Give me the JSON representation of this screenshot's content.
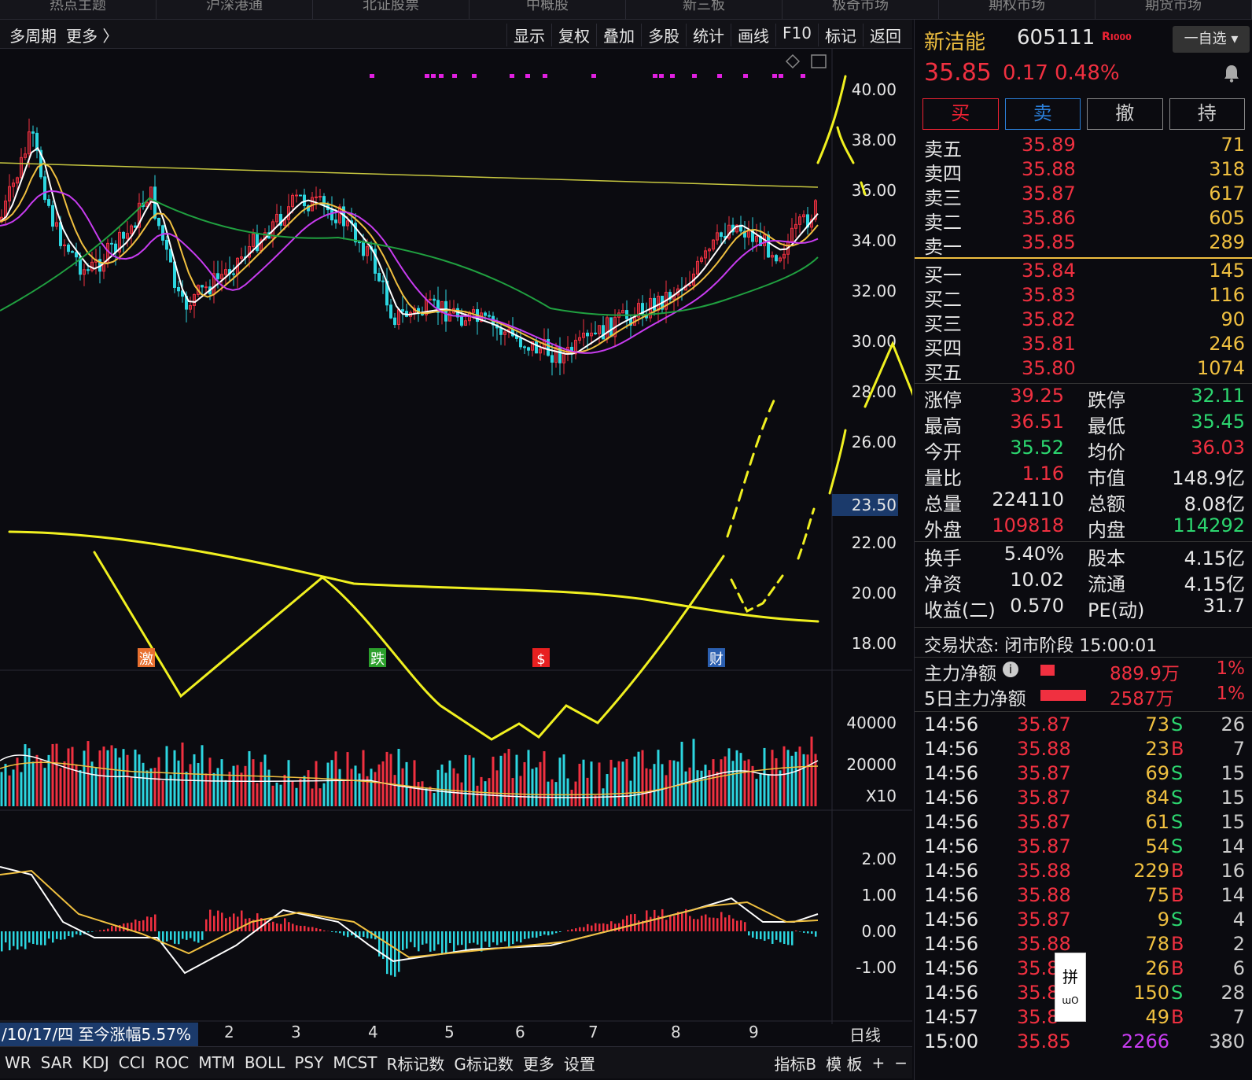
{
  "top_tabs": [
    "热点主题",
    "沪深港通",
    "北证股票",
    "中概股",
    "新三板",
    "极奇市场",
    "期权市场",
    "期货市场"
  ],
  "toolbar": {
    "left": [
      "多周期",
      "更多 〉"
    ],
    "right": [
      "显示",
      "复权",
      "叠加",
      "多股",
      "统计",
      "画线",
      "F10",
      "标记",
      "返回"
    ]
  },
  "price_axis": [
    "40.00",
    "38.00",
    "36.00",
    "34.00",
    "32.00",
    "30.00",
    "28.00",
    "26.00",
    "23.50",
    "22.00",
    "20.00",
    "18.00"
  ],
  "volume_axis": [
    "40000",
    "20000",
    "X10"
  ],
  "macd_axis": [
    "2.00",
    "1.00",
    "0.00",
    "-1.00"
  ],
  "event_markers": [
    {
      "label": "激",
      "color": "#e87030",
      "x": 186
    },
    {
      "label": "跌",
      "color": "#2ca02c",
      "x": 480
    },
    {
      "label": "$",
      "color": "#e82020",
      "x": 688
    },
    {
      "label": "财",
      "color": "#2b5fb0",
      "x": 911
    }
  ],
  "date_info": "/10/17/四 至今涨幅5.57%",
  "month_labels": [
    "2",
    "3",
    "4",
    "5",
    "6",
    "7",
    "8",
    "9"
  ],
  "period_label": "日线",
  "indicator_tabs": [
    "WR",
    "SAR",
    "KDJ",
    "CCI",
    "ROC",
    "MTM",
    "BOLL",
    "PSY",
    "MCST",
    "R标记数",
    "G标记数",
    "更多",
    "设置"
  ],
  "indicator_right": [
    "指标B",
    "模 板",
    "+",
    "−"
  ],
  "stock": {
    "name": "新洁能",
    "code": "605111",
    "badge": "R",
    "badge_suffix": "I000",
    "watchlist": "一自选",
    "price": "35.85",
    "change": "0.17",
    "pct": "0.48%"
  },
  "trade_buttons": [
    "买",
    "卖",
    "撤",
    "持"
  ],
  "asks": [
    {
      "label": "卖五",
      "price": "35.89",
      "vol": "71"
    },
    {
      "label": "卖四",
      "price": "35.88",
      "vol": "318"
    },
    {
      "label": "卖三",
      "price": "35.87",
      "vol": "617"
    },
    {
      "label": "卖二",
      "price": "35.86",
      "vol": "605"
    },
    {
      "label": "卖一",
      "price": "35.85",
      "vol": "289"
    }
  ],
  "bids": [
    {
      "label": "买一",
      "price": "35.84",
      "vol": "145"
    },
    {
      "label": "买二",
      "price": "35.83",
      "vol": "116"
    },
    {
      "label": "买三",
      "price": "35.82",
      "vol": "90"
    },
    {
      "label": "买四",
      "price": "35.81",
      "vol": "246"
    },
    {
      "label": "买五",
      "price": "35.80",
      "vol": "1074"
    }
  ],
  "stats": [
    {
      "l1": "涨停",
      "v1": "39.25",
      "c1": "red",
      "l2": "跌停",
      "v2": "32.11",
      "c2": "green"
    },
    {
      "l1": "最高",
      "v1": "36.51",
      "c1": "red",
      "l2": "最低",
      "v2": "35.45",
      "c2": "green"
    },
    {
      "l1": "今开",
      "v1": "35.52",
      "c1": "green",
      "l2": "均价",
      "v2": "36.03",
      "c2": "red"
    },
    {
      "l1": "量比",
      "v1": "1.16",
      "c1": "red",
      "l2": "市值",
      "v2": "148.9亿",
      "c2": "white"
    },
    {
      "l1": "总量",
      "v1": "224110",
      "c1": "white",
      "l2": "总额",
      "v2": "8.08亿",
      "c2": "white"
    },
    {
      "l1": "外盘",
      "v1": "109818",
      "c1": "red",
      "l2": "内盘",
      "v2": "114292",
      "c2": "green"
    }
  ],
  "stats2": [
    {
      "l1": "换手",
      "v1": "5.40%",
      "c1": "white",
      "l2": "股本",
      "v2": "4.15亿",
      "c2": "white"
    },
    {
      "l1": "净资",
      "v1": "10.02",
      "c1": "white",
      "l2": "流通",
      "v2": "4.15亿",
      "c2": "white"
    },
    {
      "l1": "收益(二)",
      "v1": "0.570",
      "c1": "white",
      "l2": "PE(动)",
      "v2": "31.7",
      "c2": "white"
    }
  ],
  "trade_status": "交易状态: 闭市阶段 15:00:01",
  "money_flow": [
    {
      "label": "主力净额",
      "amount": "889.9万",
      "pct": "1%"
    },
    {
      "label": "5日主力净额",
      "amount": "2587万",
      "pct": "1%"
    }
  ],
  "ticks": [
    {
      "t": "14:56",
      "p": "35.87",
      "v": "73",
      "bs": "S",
      "n": "26"
    },
    {
      "t": "14:56",
      "p": "35.88",
      "v": "23",
      "bs": "B",
      "n": "7"
    },
    {
      "t": "14:56",
      "p": "35.87",
      "v": "69",
      "bs": "S",
      "n": "15"
    },
    {
      "t": "14:56",
      "p": "35.87",
      "v": "84",
      "bs": "S",
      "n": "15"
    },
    {
      "t": "14:56",
      "p": "35.87",
      "v": "61",
      "bs": "S",
      "n": "15"
    },
    {
      "t": "14:56",
      "p": "35.87",
      "v": "54",
      "bs": "S",
      "n": "14"
    },
    {
      "t": "14:56",
      "p": "35.88",
      "v": "229",
      "bs": "B",
      "n": "16"
    },
    {
      "t": "14:56",
      "p": "35.88",
      "v": "75",
      "bs": "B",
      "n": "14"
    },
    {
      "t": "14:56",
      "p": "35.87",
      "v": "9",
      "bs": "S",
      "n": "4"
    },
    {
      "t": "14:56",
      "p": "35.88",
      "v": "78",
      "bs": "B",
      "n": "2"
    },
    {
      "t": "14:56",
      "p": "35.8",
      "v": "26",
      "bs": "B",
      "n": "6"
    },
    {
      "t": "14:56",
      "p": "35.8",
      "v": "150",
      "bs": "S",
      "n": "28"
    },
    {
      "t": "14:57",
      "p": "35.8",
      "v": "49",
      "bs": "B",
      "n": "7"
    },
    {
      "t": "15:00",
      "p": "35.85",
      "v": "2266",
      "bs": "",
      "n": "380"
    }
  ],
  "ime": {
    "glyph": "拼",
    "sub": "ɯO"
  },
  "colors": {
    "up": "#f03040",
    "down": "#2cd6e0",
    "ma5": "#ffffff",
    "ma10": "#f0c040",
    "ma20": "#c83cf0",
    "ma60": "#20a040",
    "annotation": "#f0f020"
  }
}
